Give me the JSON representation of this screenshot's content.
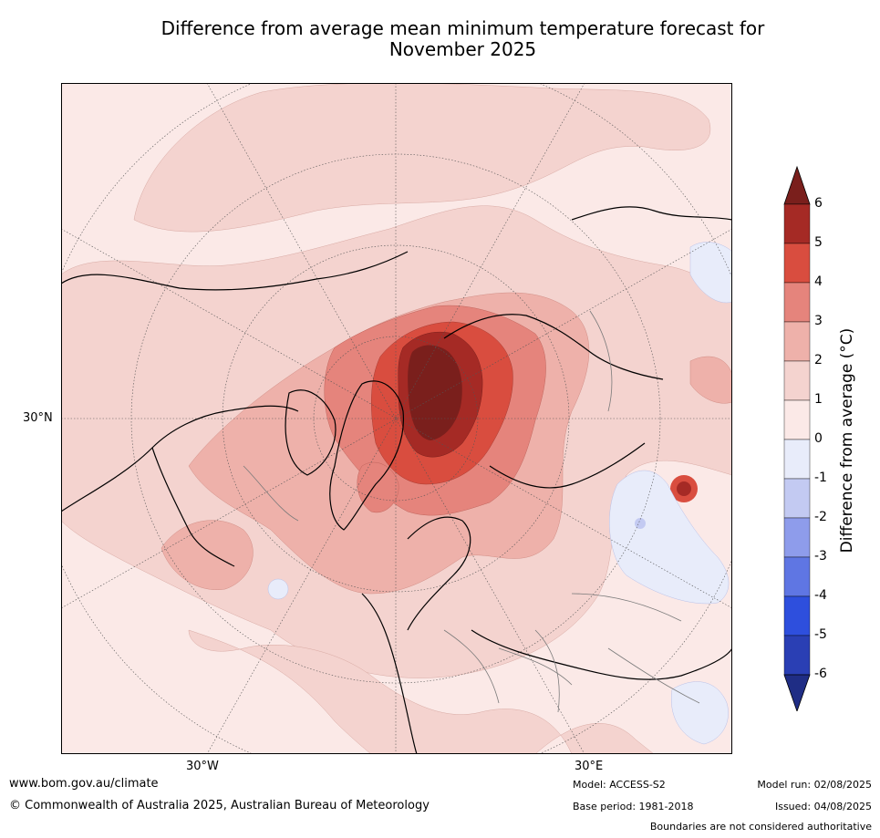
{
  "title_line1": "Difference from average mean minimum temperature forecast for",
  "title_line2": "November 2025",
  "map": {
    "projection": "north-polar-stereographic",
    "lat_label": "30°N",
    "lon_labels": [
      "30°W",
      "30°E"
    ]
  },
  "colorbar": {
    "title": "Difference from average (°C)",
    "tick_labels": [
      "6",
      "5",
      "4",
      "3",
      "2",
      "1",
      "0",
      "-1",
      "-2",
      "-3",
      "-4",
      "-5",
      "-6"
    ],
    "colors": {
      "above_6": "#7a1f1c",
      "5_to_6": "#a52a25",
      "4_to_5": "#d94d3f",
      "3_to_4": "#e5847c",
      "2_to_3": "#eeb1aa",
      "1_to_2": "#f4d3cf",
      "0_to_1": "#fbe9e7",
      "m1_to_0": "#e8ecfa",
      "m2_to_m1": "#c3caf2",
      "m3_to_m2": "#8e9ceb",
      "m4_to_m3": "#5f76e3",
      "m5_to_m4": "#2e4fdd",
      "m6_to_m5": "#2a3fb4",
      "below_m6": "#1f2d85"
    }
  },
  "footer": {
    "website": "www.bom.gov.au/climate",
    "copyright": "© Commonwealth of Australia 2025, Australian Bureau of Meteorology",
    "model": "Model: ACCESS-S2",
    "base_period": "Base period: 1981-2018",
    "model_run": "Model run: 02/08/2025",
    "issued": "Issued: 04/08/2025",
    "disclaimer": "Boundaries are not considered authoritative"
  }
}
